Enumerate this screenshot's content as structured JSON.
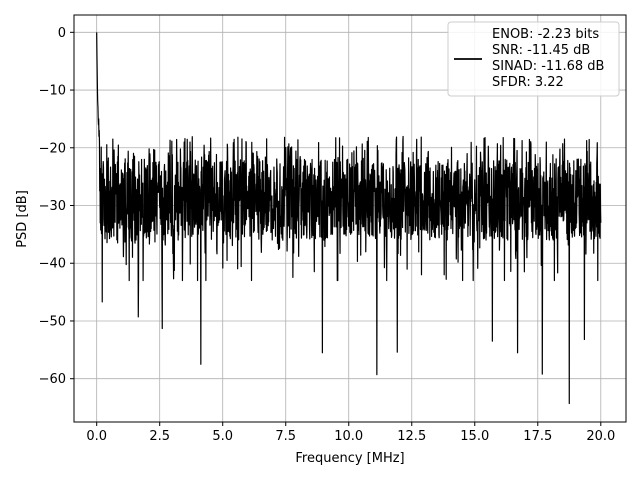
{
  "chart_data": {
    "type": "line",
    "xlabel": "Frequency [MHz]",
    "ylabel": "PSD [dB]",
    "xlim": [
      -0.9,
      21.0
    ],
    "ylim": [
      -67.5,
      3.0
    ],
    "grid": true,
    "legend_placement": "top-right",
    "xticks": [
      0.0,
      2.5,
      5.0,
      7.5,
      10.0,
      12.5,
      15.0,
      17.5,
      20.0
    ],
    "xtick_labels": [
      "0.0",
      "2.5",
      "5.0",
      "7.5",
      "10.0",
      "12.5",
      "15.0",
      "17.5",
      "20.0"
    ],
    "yticks": [
      0,
      -10,
      -20,
      -30,
      -40,
      -50,
      -60
    ],
    "ytick_labels": [
      "0",
      "−10",
      "−20",
      "−30",
      "−40",
      "−50",
      "−60"
    ],
    "series": [
      {
        "color": "#000000",
        "x_range": [
          0.0,
          20.0
        ],
        "points": 2000,
        "peak": {
          "x": 0.0,
          "y": 0.0
        },
        "noise_floor_mean": -29,
        "noise_floor_upper": -20,
        "notable_dips": [
          [
            4.13,
            -57.5
          ],
          [
            8.95,
            -55.5
          ],
          [
            11.12,
            -59.3
          ],
          [
            18.75,
            -64.3
          ],
          [
            17.68,
            -59.2
          ],
          [
            16.7,
            -55.5
          ],
          [
            2.6,
            -51.3
          ],
          [
            11.93,
            -55.4
          ],
          [
            1.65,
            -49.3
          ],
          [
            0.22,
            -46.7
          ],
          [
            15.7,
            -53.5
          ],
          [
            19.35,
            -53.2
          ]
        ]
      }
    ],
    "legend": [
      "ENOB: -2.23 bits",
      "SNR: -11.45 dB",
      "SINAD: -11.68 dB",
      "SFDR: 3.22"
    ]
  }
}
